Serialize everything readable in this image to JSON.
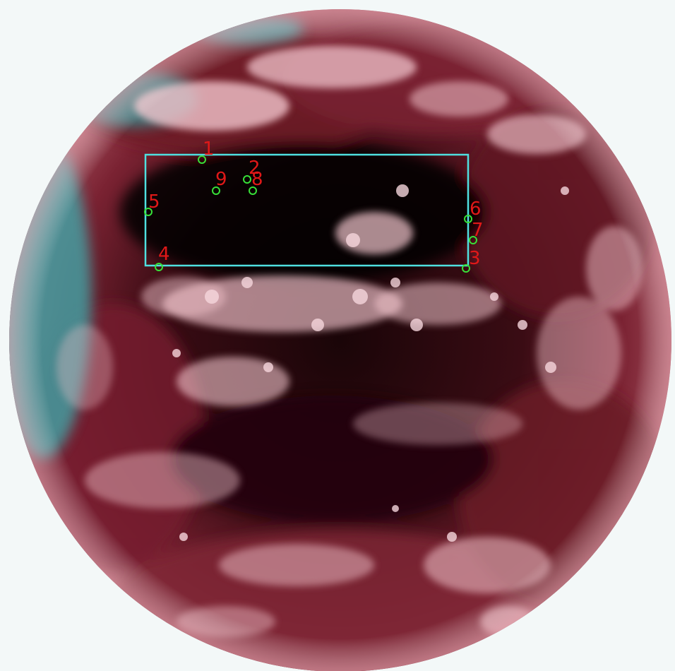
{
  "image": {
    "subject": "Satellite full-disk image of Earth with false-color (red tinted) cloud imagery",
    "colors": {
      "background": "#f3f8f8",
      "earth_dark": "#0b0204",
      "earth_red": "#7a2232",
      "cloud": "#f2c4cc",
      "limb_cyan": "#3fa6a8",
      "box_outline": "#4fe0e0",
      "marker_circle": "#38e038",
      "marker_label": "#e01818"
    }
  },
  "annotation": {
    "markers": [
      {
        "label": "1"
      },
      {
        "label": "2"
      },
      {
        "label": "9"
      },
      {
        "label": "8"
      },
      {
        "label": "5"
      },
      {
        "label": "4"
      },
      {
        "label": "6"
      },
      {
        "label": "7"
      },
      {
        "label": "3"
      }
    ]
  }
}
